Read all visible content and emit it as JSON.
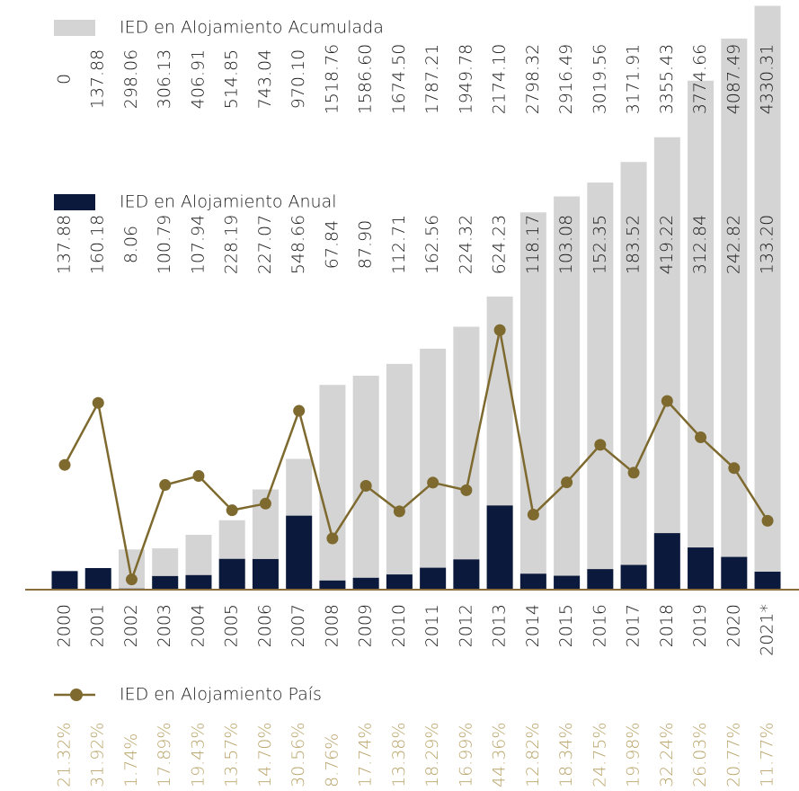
{
  "chart_data": {
    "type": "bar",
    "categories": [
      "2000",
      "2001",
      "2002",
      "2003",
      "2004",
      "2005",
      "2006",
      "2007",
      "2008",
      "2009",
      "2010",
      "2011",
      "2012",
      "2013",
      "2014",
      "2015",
      "2016",
      "2017",
      "2018",
      "2019",
      "2020",
      "2021*"
    ],
    "ylim": [
      0,
      4340
    ],
    "y2lim": [
      0,
      100
    ],
    "series": [
      {
        "name": "IED en Alojamiento Acumulada",
        "type": "bar",
        "color": "#d4d4d4",
        "values": [
          0,
          137.88,
          298.06,
          306.13,
          406.91,
          514.85,
          743.04,
          970.1,
          1518.76,
          1586.6,
          1674.5,
          1787.21,
          1949.78,
          2174.1,
          2798.32,
          2916.49,
          3019.56,
          3171.91,
          3355.43,
          3774.66,
          4087.49,
          4330.31
        ],
        "value_labels": [
          "0",
          "137.88",
          "298.06",
          "306.13",
          "406.91",
          "514.85",
          "743.04",
          "970.10",
          "1518.76",
          "1586.60",
          "1674.50",
          "1787.21",
          "1949.78",
          "2174.10",
          "2798.32",
          "2916.49",
          "3019.56",
          "3171.91",
          "3355.43",
          "3774.66",
          "4087.49",
          "4330.31"
        ]
      },
      {
        "name": "IED en Alojamiento Anual",
        "type": "bar",
        "color": "#0b1a3c",
        "values": [
          137.88,
          160.18,
          8.06,
          100.79,
          107.94,
          228.19,
          227.07,
          548.66,
          67.84,
          87.9,
          112.71,
          162.56,
          224.32,
          624.23,
          118.17,
          103.08,
          152.35,
          183.52,
          419.22,
          312.84,
          242.82,
          133.2
        ],
        "value_labels": [
          "137.88",
          "160.18",
          "8.06",
          "100.79",
          "107.94",
          "228.19",
          "227.07",
          "548.66",
          "67.84",
          "87.90",
          "112.71",
          "162.56",
          "224.32",
          "624.23",
          "118.17",
          "103.08",
          "152.35",
          "183.52",
          "419.22",
          "312.84",
          "242.82",
          "133.20"
        ]
      },
      {
        "name": "IED en Alojamiento País",
        "type": "line",
        "axis": "y2",
        "color": "#7e6a2f",
        "values": [
          21.32,
          31.92,
          1.74,
          17.89,
          19.43,
          13.57,
          14.7,
          30.56,
          8.76,
          17.74,
          13.38,
          18.29,
          16.99,
          44.36,
          12.82,
          18.34,
          24.75,
          19.98,
          32.24,
          26.03,
          20.77,
          11.77
        ],
        "value_labels": [
          "21.32%",
          "31.92%",
          "1.74%",
          "17.89%",
          "19.43%",
          "13.57%",
          "14.70%",
          "30.56%",
          "8.76%",
          "17.74%",
          "13.38%",
          "18.29%",
          "16.99%",
          "44.36%",
          "12.82%",
          "18.34%",
          "24.75%",
          "19.98%",
          "32.24%",
          "26.03%",
          "20.77%",
          "11.77%"
        ]
      }
    ]
  }
}
